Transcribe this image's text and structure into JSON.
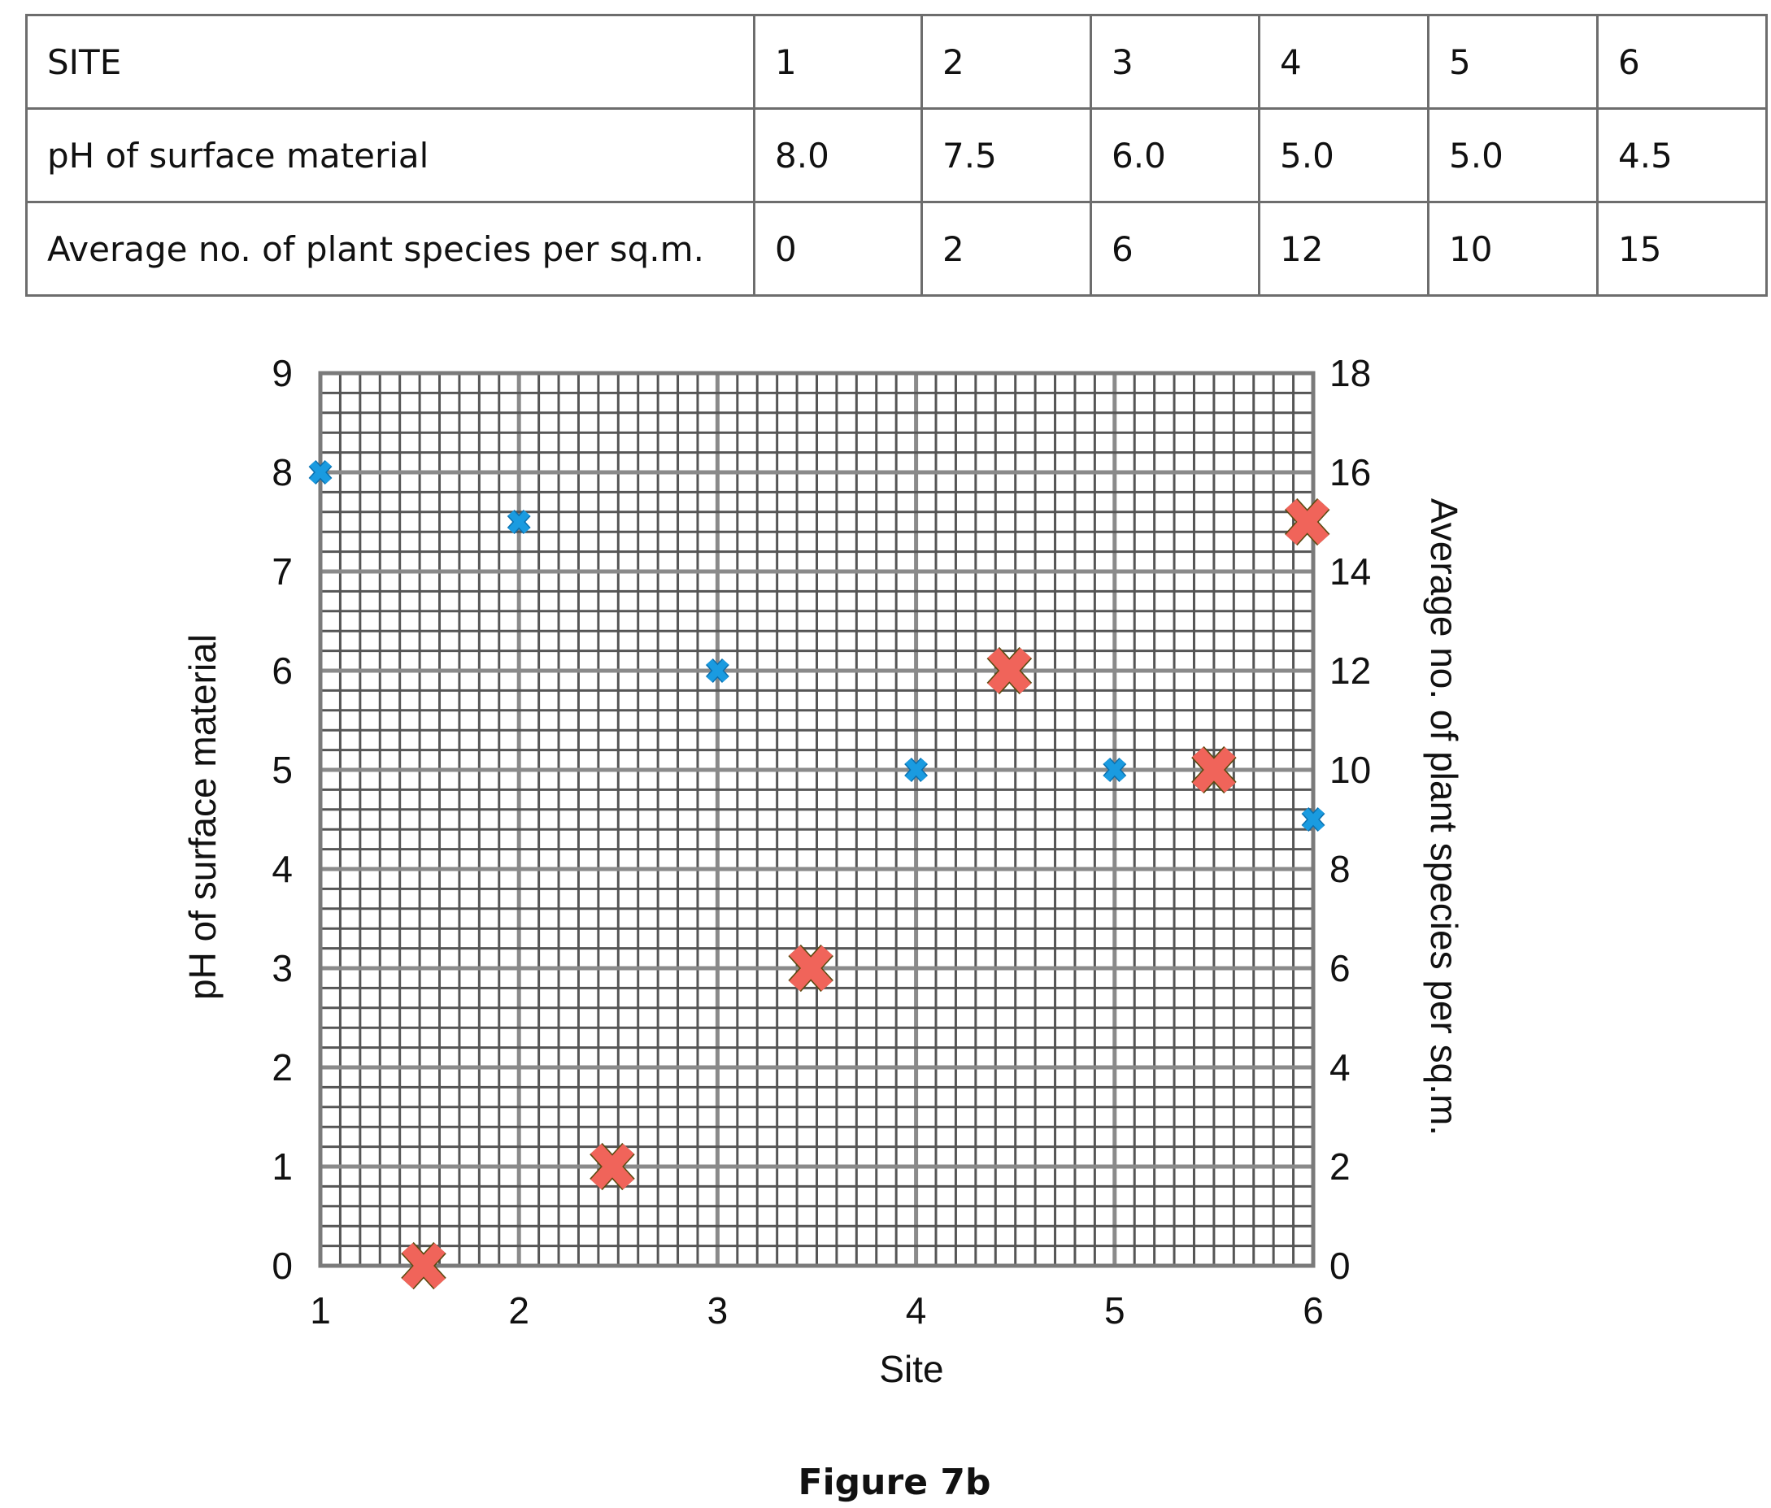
{
  "table": {
    "rows": [
      {
        "label": "SITE",
        "values": [
          "1",
          "2",
          "3",
          "4",
          "5",
          "6"
        ]
      },
      {
        "label": "pH of surface material",
        "values": [
          "8.0",
          "7.5",
          "6.0",
          "5.0",
          "5.0",
          "4.5"
        ]
      },
      {
        "label": "Average no. of plant species per sq.m.",
        "values": [
          "0",
          "2",
          "6",
          "12",
          "10",
          "15"
        ]
      }
    ]
  },
  "chart_data": {
    "type": "scatter",
    "title": "",
    "caption": "Figure 7b",
    "xlabel": "Site",
    "ylabel_left": "pH of surface material",
    "ylabel_right": "Average no. of plant species per sq.m.",
    "xlim": [
      1,
      6
    ],
    "ylim_left": [
      0,
      9
    ],
    "ylim_right": [
      0,
      18
    ],
    "x_ticks": [
      "1",
      "2",
      "3",
      "4",
      "5",
      "6"
    ],
    "y_left_ticks": [
      "0",
      "1",
      "2",
      "3",
      "4",
      "5",
      "6",
      "7",
      "8",
      "9"
    ],
    "y_right_ticks": [
      "0",
      "2",
      "4",
      "6",
      "8",
      "10",
      "12",
      "14",
      "16",
      "18"
    ],
    "grid": true,
    "grid_minor_x": 0.1,
    "grid_minor_y_left": 0.2,
    "series": [
      {
        "axis": "left",
        "marker": "small-x",
        "color": "#1a9be0",
        "points": [
          [
            1,
            8.0
          ],
          [
            2,
            7.5
          ],
          [
            3,
            6.0
          ],
          [
            4,
            5.0
          ],
          [
            5,
            5.0
          ],
          [
            6,
            4.5
          ]
        ]
      },
      {
        "axis": "right",
        "marker": "large-x",
        "color": "#f0645a",
        "points": [
          [
            1.52,
            0
          ],
          [
            2.47,
            2
          ],
          [
            3.47,
            6
          ],
          [
            4.47,
            12
          ],
          [
            5.5,
            10
          ],
          [
            5.97,
            15
          ]
        ]
      }
    ]
  }
}
